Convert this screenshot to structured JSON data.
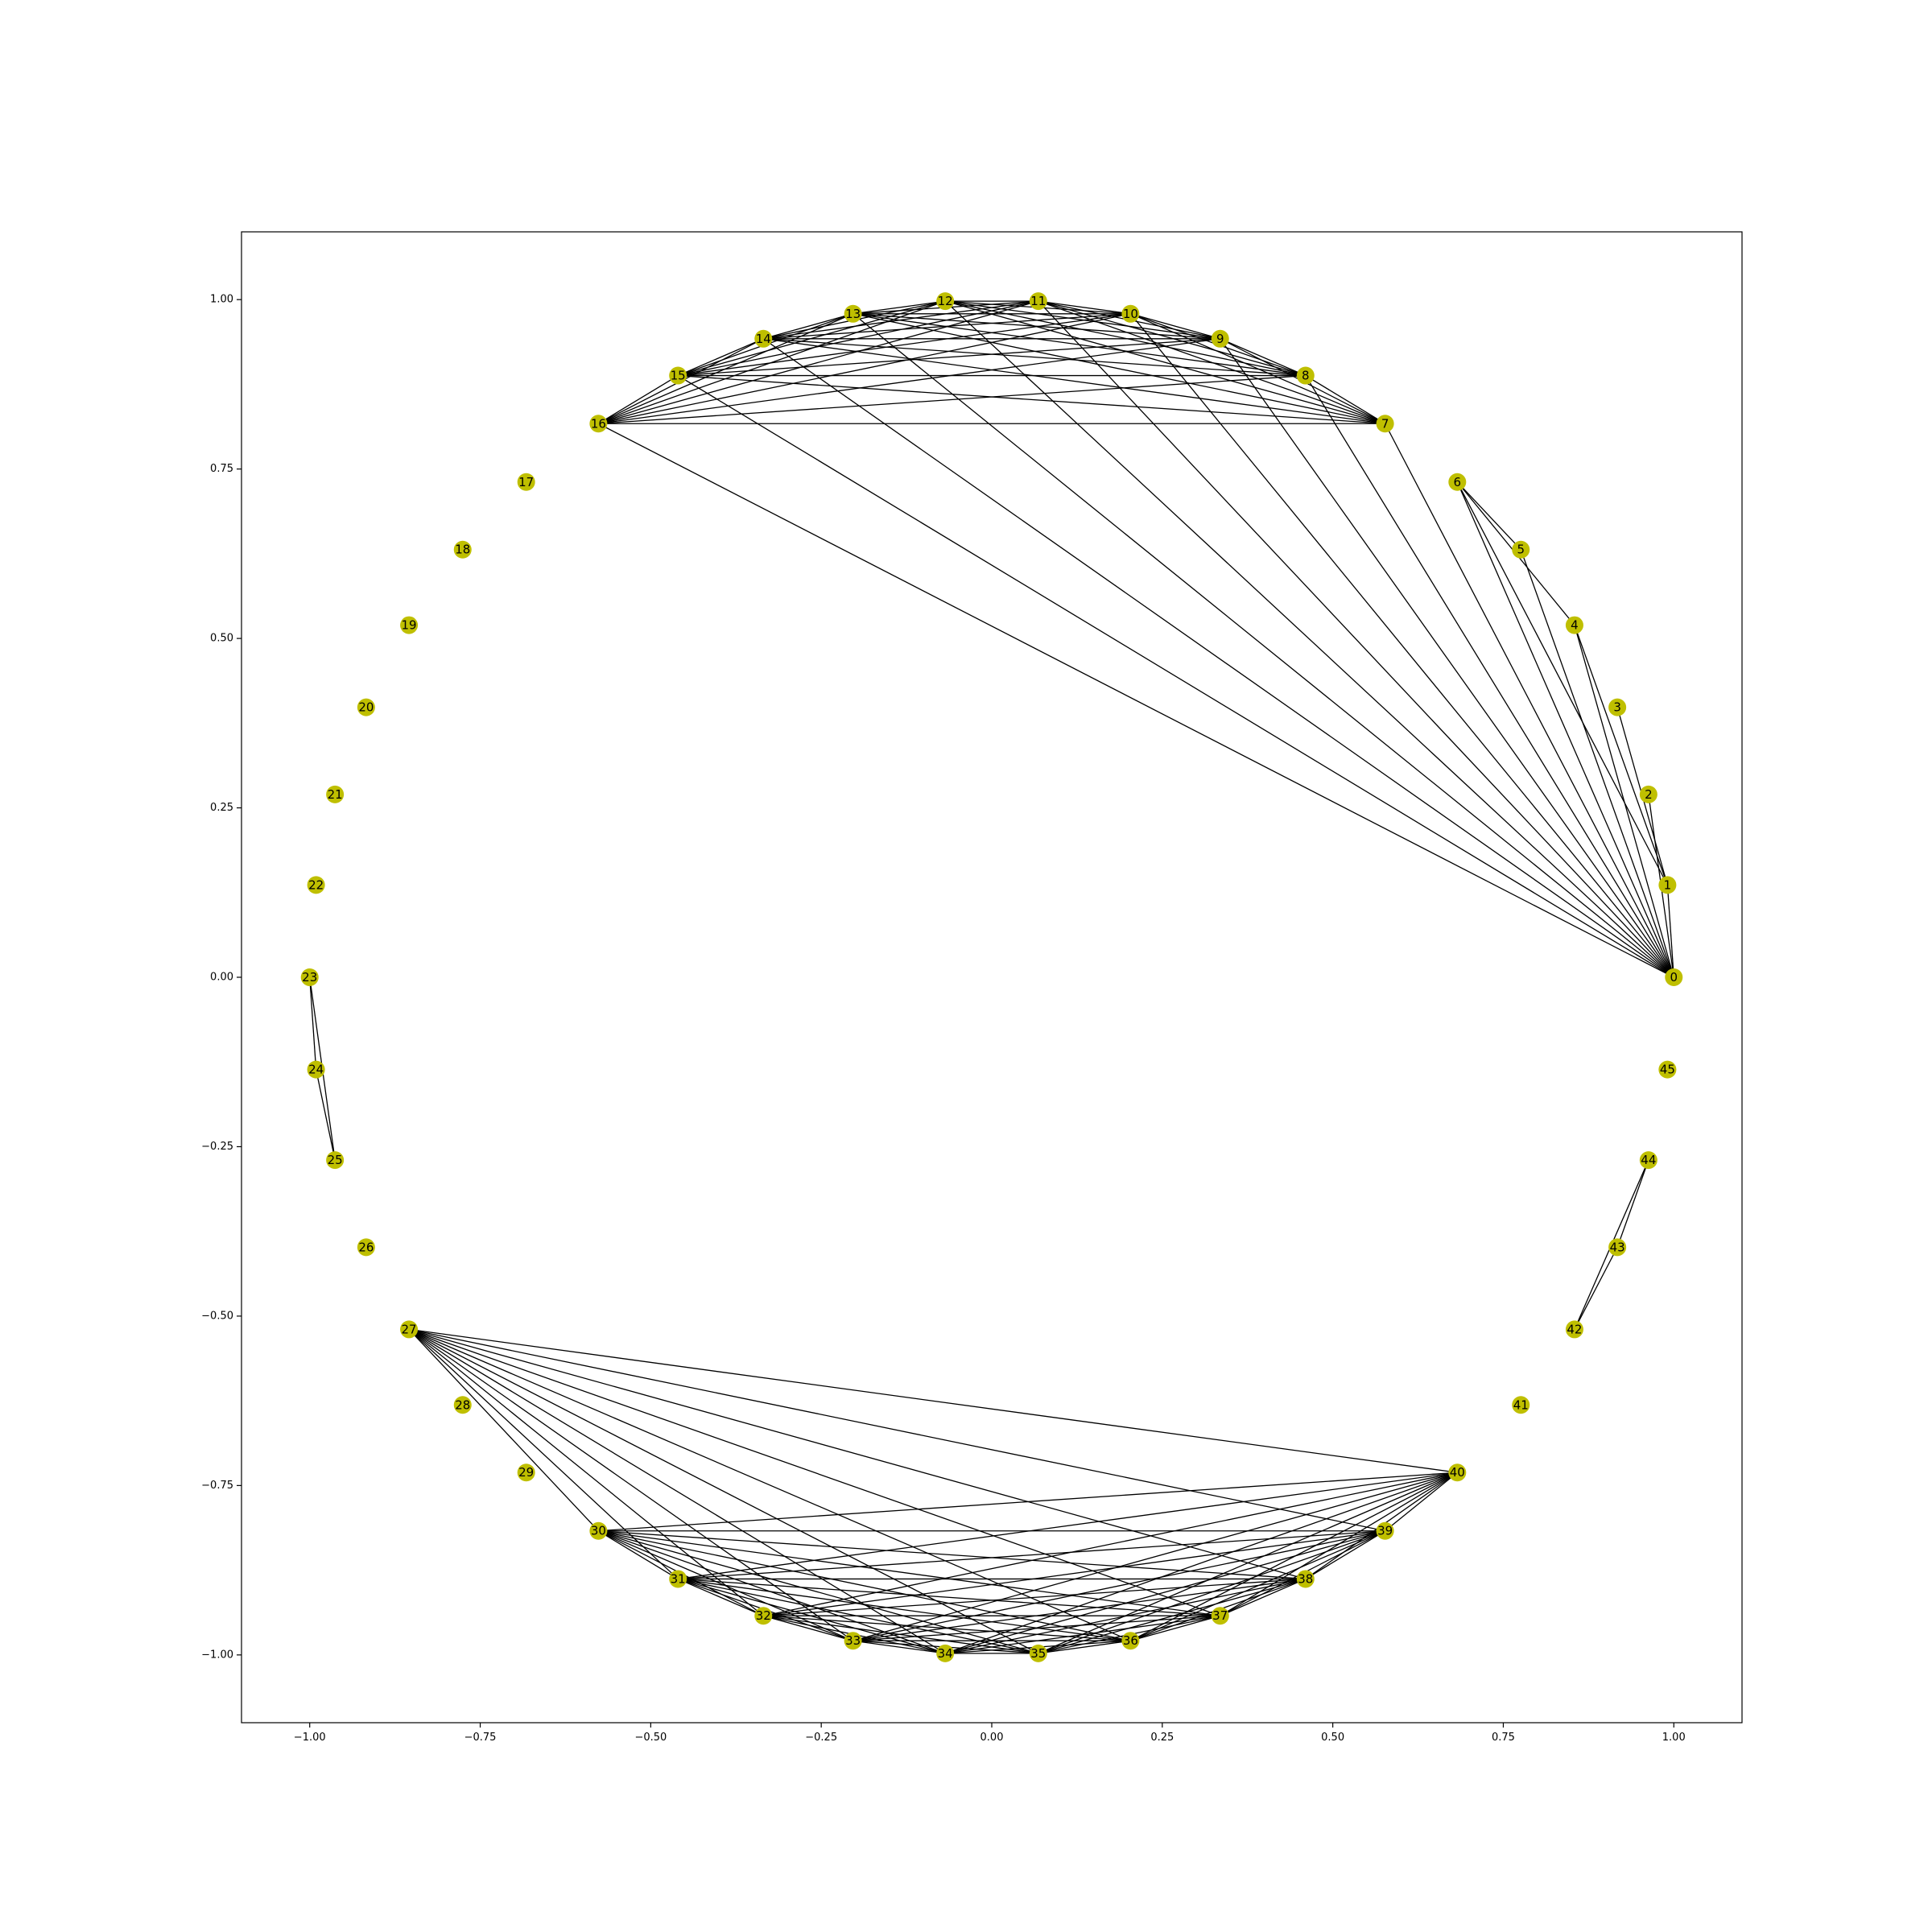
{
  "chart_data": {
    "type": "network",
    "layout": "circular",
    "node_color": "#bfbf00",
    "edge_color": "#000000",
    "background": "#ffffff",
    "grid": false,
    "title": "",
    "xlabel": "",
    "ylabel": "",
    "xlim": [
      -1.1,
      1.1
    ],
    "ylim": [
      -1.1,
      1.1
    ],
    "x_ticks": [
      -1.0,
      -0.75,
      -0.5,
      -0.25,
      0.0,
      0.25,
      0.5,
      0.75,
      1.0
    ],
    "x_tick_labels": [
      "−1.00",
      "−0.75",
      "−0.50",
      "−0.25",
      "0.00",
      "0.25",
      "0.50",
      "0.75",
      "1.00"
    ],
    "y_ticks": [
      1.0,
      0.75,
      0.5,
      0.25,
      0.0,
      -0.25,
      -0.5,
      -0.75,
      -1.0
    ],
    "y_tick_labels": [
      "1.00",
      "0.75",
      "0.50",
      "0.25",
      "0.00",
      "−0.25",
      "−0.50",
      "−0.75",
      "−1.00"
    ],
    "node_count": 46,
    "nodes": [
      "0",
      "1",
      "2",
      "3",
      "4",
      "5",
      "6",
      "7",
      "8",
      "9",
      "10",
      "11",
      "12",
      "13",
      "14",
      "15",
      "16",
      "17",
      "18",
      "19",
      "20",
      "21",
      "22",
      "23",
      "24",
      "25",
      "26",
      "27",
      "28",
      "29",
      "30",
      "31",
      "32",
      "33",
      "34",
      "35",
      "36",
      "37",
      "38",
      "39",
      "40",
      "41",
      "42",
      "43",
      "44",
      "45"
    ],
    "edges": [
      [
        0,
        1
      ],
      [
        0,
        2
      ],
      [
        0,
        4
      ],
      [
        0,
        5
      ],
      [
        0,
        6
      ],
      [
        0,
        7
      ],
      [
        0,
        8
      ],
      [
        0,
        9
      ],
      [
        0,
        10
      ],
      [
        0,
        11
      ],
      [
        0,
        12
      ],
      [
        0,
        13
      ],
      [
        0,
        14
      ],
      [
        0,
        15
      ],
      [
        0,
        16
      ],
      [
        1,
        3
      ],
      [
        1,
        4
      ],
      [
        1,
        6
      ],
      [
        4,
        6
      ],
      [
        5,
        6
      ],
      [
        7,
        8
      ],
      [
        7,
        9
      ],
      [
        7,
        10
      ],
      [
        7,
        11
      ],
      [
        7,
        12
      ],
      [
        7,
        13
      ],
      [
        7,
        14
      ],
      [
        7,
        15
      ],
      [
        7,
        16
      ],
      [
        8,
        9
      ],
      [
        8,
        10
      ],
      [
        8,
        11
      ],
      [
        8,
        12
      ],
      [
        8,
        13
      ],
      [
        8,
        14
      ],
      [
        8,
        15
      ],
      [
        8,
        16
      ],
      [
        9,
        10
      ],
      [
        9,
        11
      ],
      [
        9,
        12
      ],
      [
        9,
        13
      ],
      [
        9,
        14
      ],
      [
        9,
        15
      ],
      [
        9,
        16
      ],
      [
        10,
        11
      ],
      [
        10,
        12
      ],
      [
        10,
        13
      ],
      [
        10,
        14
      ],
      [
        10,
        15
      ],
      [
        10,
        16
      ],
      [
        11,
        12
      ],
      [
        11,
        13
      ],
      [
        11,
        14
      ],
      [
        11,
        15
      ],
      [
        11,
        16
      ],
      [
        12,
        13
      ],
      [
        12,
        14
      ],
      [
        12,
        15
      ],
      [
        12,
        16
      ],
      [
        13,
        14
      ],
      [
        13,
        15
      ],
      [
        13,
        16
      ],
      [
        14,
        15
      ],
      [
        14,
        16
      ],
      [
        15,
        16
      ],
      [
        23,
        24
      ],
      [
        23,
        25
      ],
      [
        24,
        25
      ],
      [
        27,
        30
      ],
      [
        27,
        31
      ],
      [
        27,
        32
      ],
      [
        27,
        33
      ],
      [
        27,
        34
      ],
      [
        27,
        35
      ],
      [
        27,
        36
      ],
      [
        27,
        37
      ],
      [
        27,
        38
      ],
      [
        27,
        39
      ],
      [
        27,
        40
      ],
      [
        30,
        31
      ],
      [
        30,
        32
      ],
      [
        30,
        33
      ],
      [
        30,
        34
      ],
      [
        30,
        35
      ],
      [
        30,
        36
      ],
      [
        30,
        37
      ],
      [
        30,
        38
      ],
      [
        30,
        39
      ],
      [
        30,
        40
      ],
      [
        31,
        32
      ],
      [
        31,
        33
      ],
      [
        31,
        34
      ],
      [
        31,
        35
      ],
      [
        31,
        36
      ],
      [
        31,
        37
      ],
      [
        31,
        38
      ],
      [
        31,
        39
      ],
      [
        31,
        40
      ],
      [
        32,
        33
      ],
      [
        32,
        34
      ],
      [
        32,
        35
      ],
      [
        32,
        36
      ],
      [
        32,
        37
      ],
      [
        32,
        38
      ],
      [
        32,
        39
      ],
      [
        32,
        40
      ],
      [
        33,
        34
      ],
      [
        33,
        35
      ],
      [
        33,
        36
      ],
      [
        33,
        37
      ],
      [
        33,
        38
      ],
      [
        33,
        39
      ],
      [
        33,
        40
      ],
      [
        34,
        35
      ],
      [
        34,
        36
      ],
      [
        34,
        37
      ],
      [
        34,
        38
      ],
      [
        34,
        39
      ],
      [
        34,
        40
      ],
      [
        35,
        36
      ],
      [
        35,
        37
      ],
      [
        35,
        38
      ],
      [
        35,
        39
      ],
      [
        35,
        40
      ],
      [
        36,
        37
      ],
      [
        36,
        38
      ],
      [
        36,
        39
      ],
      [
        36,
        40
      ],
      [
        37,
        38
      ],
      [
        37,
        39
      ],
      [
        37,
        40
      ],
      [
        38,
        39
      ],
      [
        38,
        40
      ],
      [
        39,
        40
      ],
      [
        42,
        43
      ],
      [
        42,
        44
      ],
      [
        43,
        44
      ]
    ]
  }
}
